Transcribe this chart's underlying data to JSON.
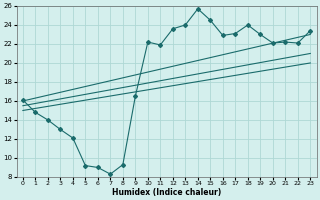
{
  "xlabel": "Humidex (Indice chaleur)",
  "ylabel": "",
  "xlim": [
    -0.5,
    23.5
  ],
  "ylim": [
    8,
    26
  ],
  "xticks": [
    0,
    1,
    2,
    3,
    4,
    5,
    6,
    7,
    8,
    9,
    10,
    11,
    12,
    13,
    14,
    15,
    16,
    17,
    18,
    19,
    20,
    21,
    22,
    23
  ],
  "yticks": [
    8,
    10,
    12,
    14,
    16,
    18,
    20,
    22,
    24,
    26
  ],
  "background_color": "#d4efed",
  "grid_color": "#aed8d5",
  "line_color": "#1a6b6b",
  "main_x": [
    0,
    1,
    2,
    3,
    4,
    5,
    6,
    7,
    8,
    9,
    10,
    11,
    12,
    13,
    14,
    15,
    16,
    17,
    18,
    19,
    20,
    21,
    22,
    23
  ],
  "main_y": [
    16.1,
    14.8,
    14.0,
    13.0,
    12.1,
    9.2,
    9.0,
    8.3,
    9.3,
    16.5,
    22.2,
    21.9,
    23.6,
    24.0,
    25.7,
    24.5,
    22.9,
    23.1,
    24.0,
    23.0,
    22.1,
    22.2,
    22.1,
    23.4
  ],
  "line1_x": [
    0,
    23
  ],
  "line1_y": [
    16.0,
    23.0
  ],
  "line2_x": [
    0,
    23
  ],
  "line2_y": [
    15.5,
    21.0
  ],
  "line3_x": [
    0,
    23
  ],
  "line3_y": [
    15.0,
    20.0
  ]
}
